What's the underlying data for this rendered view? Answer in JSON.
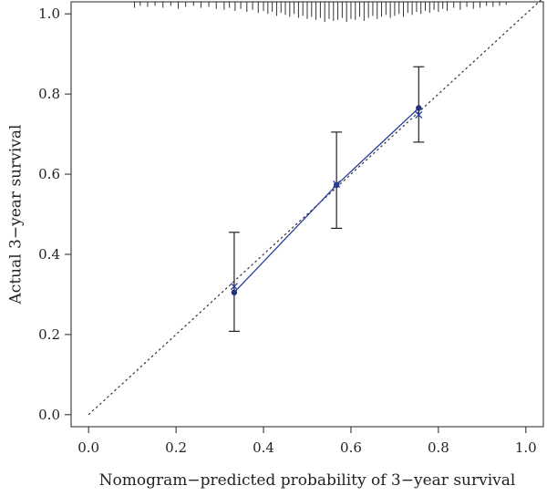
{
  "chart_data": {
    "type": "scatter",
    "xlabel": "Nomogram−predicted probability of 3−year survival",
    "ylabel": "Actual 3−year survival",
    "xlim": [
      -0.04,
      1.04
    ],
    "ylim": [
      -0.03,
      1.03
    ],
    "x_ticks": [
      0.0,
      0.2,
      0.4,
      0.6,
      0.8,
      1.0
    ],
    "y_ticks": [
      0.0,
      0.2,
      0.4,
      0.6,
      0.8,
      1.0
    ],
    "x_tick_labels": [
      "0.0",
      "0.2",
      "0.4",
      "0.6",
      "0.8",
      "1.0"
    ],
    "y_tick_labels": [
      "0.0",
      "0.2",
      "0.4",
      "0.6",
      "0.8",
      "1.0"
    ],
    "grid": false,
    "legend": "none",
    "reference_line": {
      "from": [
        0,
        0
      ],
      "to": [
        1.04,
        1.04
      ],
      "style": "dotted"
    },
    "calibration_points": [
      {
        "x": 0.333,
        "y": 0.305,
        "y_low": 0.208,
        "y_high": 0.455,
        "corrected_y": 0.32
      },
      {
        "x": 0.567,
        "y": 0.573,
        "y_low": 0.465,
        "y_high": 0.705,
        "corrected_y": 0.575
      },
      {
        "x": 0.755,
        "y": 0.765,
        "y_low": 0.68,
        "y_high": 0.868,
        "corrected_y": 0.748
      }
    ],
    "rug_x": [
      0.105,
      0.118,
      0.135,
      0.152,
      0.17,
      0.188,
      0.205,
      0.222,
      0.24,
      0.257,
      0.275,
      0.292,
      0.31,
      0.322,
      0.335,
      0.348,
      0.362,
      0.375,
      0.388,
      0.4,
      0.41,
      0.42,
      0.43,
      0.44,
      0.45,
      0.46,
      0.47,
      0.48,
      0.49,
      0.5,
      0.51,
      0.52,
      0.53,
      0.54,
      0.55,
      0.56,
      0.57,
      0.58,
      0.59,
      0.6,
      0.61,
      0.62,
      0.63,
      0.64,
      0.65,
      0.66,
      0.67,
      0.68,
      0.69,
      0.7,
      0.71,
      0.72,
      0.73,
      0.74,
      0.75,
      0.76,
      0.77,
      0.78,
      0.79,
      0.8,
      0.81,
      0.82,
      0.835,
      0.85,
      0.865,
      0.88,
      0.895,
      0.91,
      0.925,
      0.94,
      0.955
    ],
    "rug_heights": [
      0.3,
      0.2,
      0.25,
      0.2,
      0.3,
      0.2,
      0.35,
      0.25,
      0.2,
      0.3,
      0.25,
      0.35,
      0.4,
      0.3,
      0.45,
      0.35,
      0.5,
      0.4,
      0.55,
      0.45,
      0.6,
      0.5,
      0.7,
      0.55,
      0.65,
      0.75,
      0.6,
      0.8,
      0.7,
      0.85,
      0.75,
      0.9,
      0.8,
      1.0,
      0.85,
      0.95,
      0.9,
      0.8,
      1.0,
      0.85,
      0.9,
      0.75,
      0.95,
      0.8,
      0.7,
      0.85,
      0.75,
      0.65,
      0.8,
      0.7,
      0.6,
      0.75,
      0.55,
      0.65,
      0.5,
      0.6,
      0.45,
      0.55,
      0.4,
      0.5,
      0.35,
      0.45,
      0.3,
      0.4,
      0.25,
      0.35,
      0.3,
      0.2,
      0.25,
      0.2,
      0.15
    ],
    "colors": {
      "calibration_line": "#2b3f9e",
      "points": "#1f3182",
      "error_bars": "#222222",
      "reference_line": "#333333",
      "axis": "#222222"
    }
  }
}
